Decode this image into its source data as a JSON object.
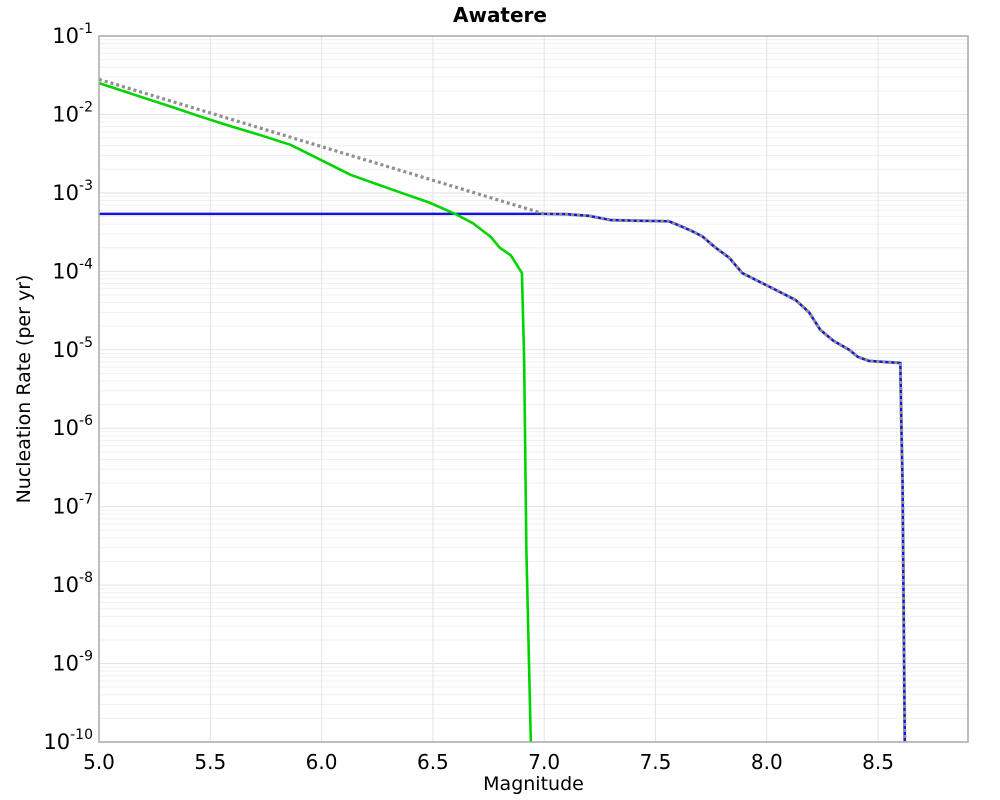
{
  "title": "Awatere",
  "chart_data": {
    "type": "line",
    "title": "Awatere",
    "xlabel": "Magnitude",
    "ylabel": "Nucleation Rate (per yr)",
    "xlim": [
      5.0,
      8.904
    ],
    "ylim_exp": [
      -10,
      -1
    ],
    "grid": true,
    "legend": "none",
    "x_ticks": [
      5.0,
      5.5,
      6.0,
      6.5,
      7.0,
      7.5,
      8.0,
      8.5
    ],
    "x_tick_labels": [
      "5.0",
      "5.5",
      "6.0",
      "6.5",
      "7.0",
      "7.5",
      "8.0",
      "8.5"
    ],
    "y_tick_base": "10",
    "y_tick_exponents": [
      -1,
      -2,
      -3,
      -4,
      -5,
      -6,
      -7,
      -8,
      -9,
      -10
    ],
    "series": [
      {
        "name": "supra-seismogenic-rate-blue-solid",
        "color": "#1414dd",
        "style": "solid",
        "width": 2.6,
        "points": [
          [
            5.0,
            0.00054
          ],
          [
            7.0,
            0.00054
          ],
          [
            7.1,
            0.000535
          ],
          [
            7.2,
            0.00051
          ],
          [
            7.3,
            0.00045
          ],
          [
            7.45,
            0.00044
          ],
          [
            7.56,
            0.000435
          ],
          [
            7.61,
            0.00038
          ],
          [
            7.66,
            0.00033
          ],
          [
            7.71,
            0.00028
          ],
          [
            7.77,
            0.0002
          ],
          [
            7.83,
            0.00015
          ],
          [
            7.89,
            9.5e-05
          ],
          [
            7.95,
            7.8e-05
          ],
          [
            8.04,
            5.8e-05
          ],
          [
            8.13,
            4.3e-05
          ],
          [
            8.19,
            3e-05
          ],
          [
            8.24,
            1.8e-05
          ],
          [
            8.3,
            1.3e-05
          ],
          [
            8.37,
            1e-05
          ],
          [
            8.41,
            8.1e-06
          ],
          [
            8.46,
            7.2e-06
          ],
          [
            8.6,
            6.8e-06
          ],
          [
            8.605,
            1e-06
          ],
          [
            8.61,
            2e-07
          ],
          [
            8.62,
            1e-10
          ]
        ]
      },
      {
        "name": "sub-seismogenic-rate-green-solid",
        "color": "#00d400",
        "style": "solid",
        "width": 2.6,
        "points": [
          [
            5.0,
            0.0251
          ],
          [
            5.16,
            0.0178
          ],
          [
            5.33,
            0.0124
          ],
          [
            5.45,
            0.0095
          ],
          [
            5.59,
            0.0071
          ],
          [
            5.72,
            0.0055
          ],
          [
            5.86,
            0.0041
          ],
          [
            6.0,
            0.0026
          ],
          [
            6.13,
            0.0017
          ],
          [
            6.35,
            0.00102
          ],
          [
            6.48,
            0.00076
          ],
          [
            6.6,
            0.00054
          ],
          [
            6.68,
            0.00041
          ],
          [
            6.76,
            0.000275
          ],
          [
            6.8,
            0.0002
          ],
          [
            6.85,
            0.00016
          ],
          [
            6.9,
            9.5e-05
          ],
          [
            6.91,
            7.4e-06
          ],
          [
            6.92,
            2.8e-08
          ],
          [
            6.94,
            1e-10
          ]
        ]
      },
      {
        "name": "total-target-rate-gray-dotted",
        "color": "#8f8f8f",
        "style": "dotted",
        "width": 3.2,
        "points": [
          [
            5.0,
            0.028
          ],
          [
            7.0,
            0.00054
          ],
          [
            7.1,
            0.000535
          ],
          [
            7.2,
            0.00051
          ],
          [
            7.3,
            0.00045
          ],
          [
            7.45,
            0.00044
          ],
          [
            7.56,
            0.000435
          ],
          [
            7.61,
            0.00038
          ],
          [
            7.66,
            0.00033
          ],
          [
            7.71,
            0.00028
          ],
          [
            7.77,
            0.0002
          ],
          [
            7.83,
            0.00015
          ],
          [
            7.89,
            9.5e-05
          ],
          [
            7.95,
            7.8e-05
          ],
          [
            8.04,
            5.8e-05
          ],
          [
            8.13,
            4.3e-05
          ],
          [
            8.19,
            3e-05
          ],
          [
            8.24,
            1.8e-05
          ],
          [
            8.3,
            1.3e-05
          ],
          [
            8.37,
            1e-05
          ],
          [
            8.41,
            8.1e-06
          ],
          [
            8.46,
            7.2e-06
          ],
          [
            8.6,
            6.8e-06
          ],
          [
            8.605,
            1e-06
          ],
          [
            8.61,
            2e-07
          ],
          [
            8.62,
            1e-10
          ]
        ]
      }
    ],
    "colors": {
      "grid_major": "#e3e3e3",
      "grid_minor": "#f0f0f0",
      "frame": "#a8a8a8",
      "background": "#ffffff"
    }
  }
}
